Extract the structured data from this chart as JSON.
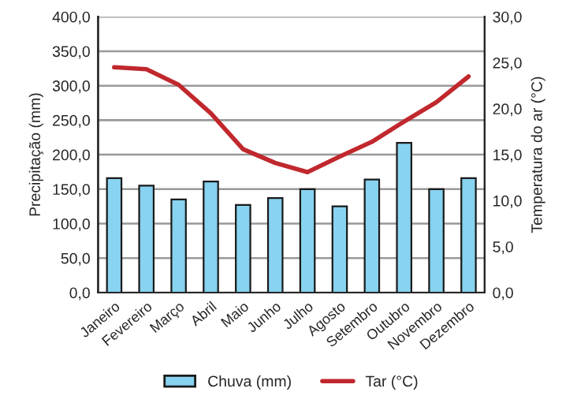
{
  "chart_data": {
    "type": "bar",
    "categories": [
      "Janeiro",
      "Fevereiro",
      "Março",
      "Abril",
      "Maio",
      "Junho",
      "Julho",
      "Agosto",
      "Setembro",
      "Outubro",
      "Novembro",
      "Dezembro"
    ],
    "ylabel": "Precipitação (mm)",
    "y2label": "Temperatura do ar (°C)",
    "series": [
      {
        "name": "Chuva (mm)",
        "color": "#87d3f0",
        "values": [
          166,
          155,
          135,
          161,
          127,
          137,
          150,
          125,
          164,
          217,
          150,
          166
        ]
      },
      {
        "name": "Tar (°C)",
        "type": "line",
        "axis": "y2",
        "color": "#c0282d",
        "values": [
          24.5,
          24.3,
          22.6,
          19.5,
          15.6,
          14.1,
          13.1,
          14.8,
          16.4,
          18.6,
          20.7,
          23.5
        ]
      }
    ],
    "ylim": [
      0,
      400
    ],
    "yticks": [
      {
        "value": 0,
        "label": "0,0"
      },
      {
        "value": 50,
        "label": "50,0"
      },
      {
        "value": 100,
        "label": "100,0"
      },
      {
        "value": 150,
        "label": "150,0"
      },
      {
        "value": 200,
        "label": "200,0"
      },
      {
        "value": 250,
        "label": "250,0"
      },
      {
        "value": 300,
        "label": "300,0"
      },
      {
        "value": 350,
        "label": "350,0"
      },
      {
        "value": 400,
        "label": "400,0"
      }
    ],
    "y2lim": [
      0,
      30
    ],
    "y2ticks": [
      {
        "value": 0,
        "label": "0,0"
      },
      {
        "value": 5,
        "label": "5,0"
      },
      {
        "value": 10,
        "label": "10,0"
      },
      {
        "value": 15,
        "label": "15,0"
      },
      {
        "value": 20,
        "label": "20,0"
      },
      {
        "value": 25,
        "label": "25,0"
      },
      {
        "value": 30,
        "label": "30,0"
      }
    ],
    "grid": "y",
    "legend": "bottom"
  }
}
